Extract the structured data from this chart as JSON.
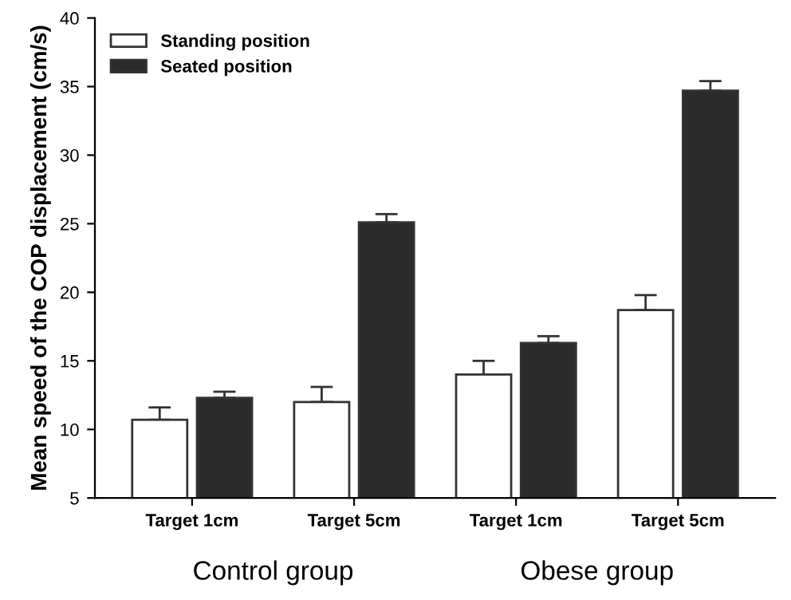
{
  "chart_data": {
    "type": "bar",
    "ylabel": "Mean speed of the COP displacement (cm/s)",
    "categories": [
      "Target 1cm",
      "Target 5cm",
      "Target 1cm",
      "Target 5cm"
    ],
    "series": [
      {
        "name": "Standing position",
        "color": "#ffffff",
        "values": [
          10.7,
          12.0,
          14.0,
          18.7
        ],
        "errors": [
          0.9,
          1.1,
          1.0,
          1.1
        ]
      },
      {
        "name": "Seated position",
        "color": "#2b2b2b",
        "values": [
          12.3,
          25.1,
          16.3,
          34.7
        ],
        "errors": [
          0.45,
          0.6,
          0.5,
          0.7
        ]
      }
    ],
    "annotations": [
      "Control group",
      "Obese group"
    ],
    "ylim": [
      5,
      40
    ],
    "yticks": [
      5,
      10,
      15,
      20,
      25,
      30,
      35,
      40
    ],
    "legend": "top left",
    "grid": false
  }
}
